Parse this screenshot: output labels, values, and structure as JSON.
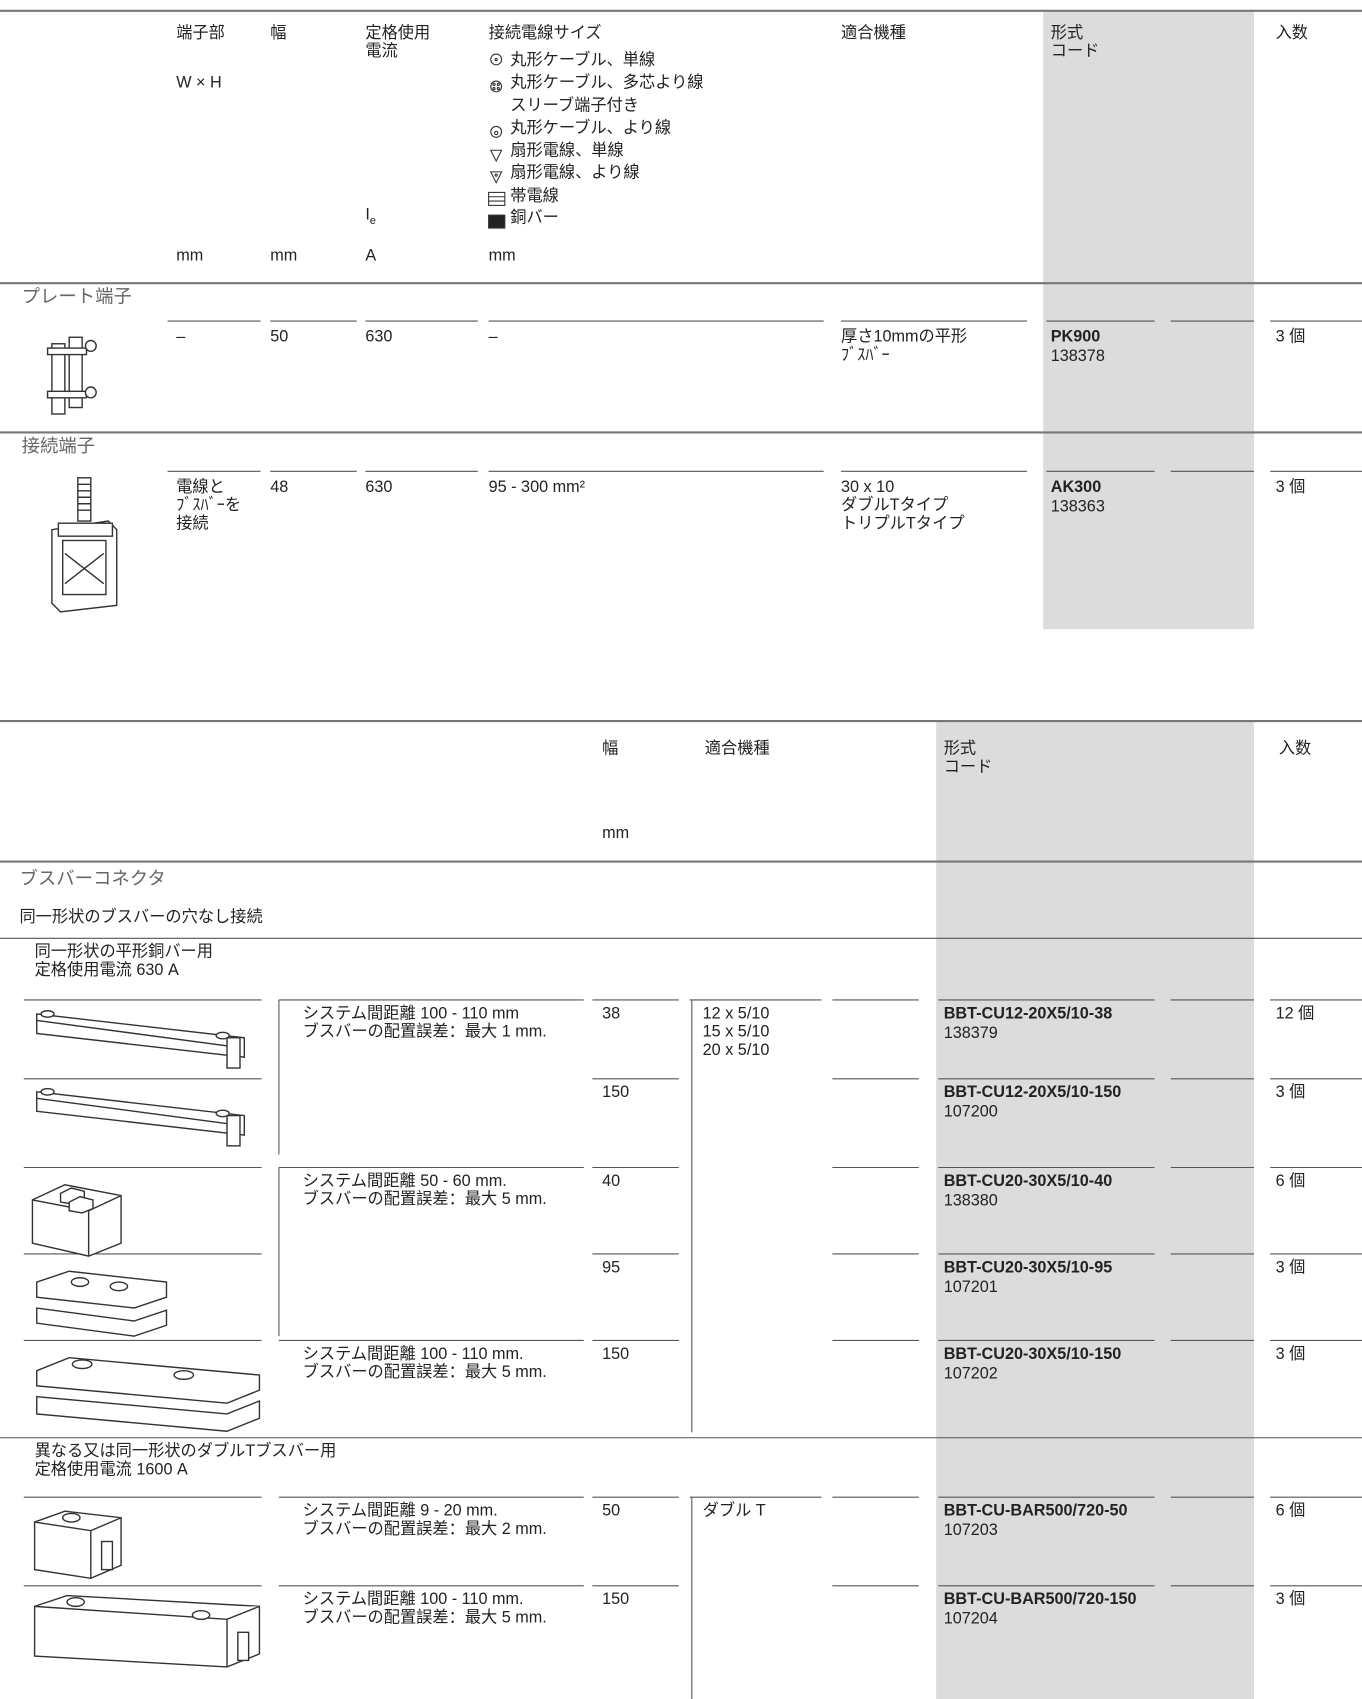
{
  "table1": {
    "headers": [
      {
        "label": "端子部",
        "sub": "W × H",
        "unit": "mm"
      },
      {
        "label": "幅",
        "unit": "mm"
      },
      {
        "label": "定格使用\n電流",
        "symbol": "I",
        "symbol_sub": "e",
        "unit": "A"
      },
      {
        "label": "接続電線サイズ",
        "legend": [
          "丸形ケーブル、単線",
          "丸形ケーブル、多芯より線\nスリーブ端子付き",
          "丸形ケーブル、より線",
          "扇形電線、単線",
          "扇形電線、より線",
          "帯電線",
          "銅バー"
        ],
        "unit": "mm"
      },
      {
        "label": "適合機種"
      },
      {
        "label": "形式\nコード"
      },
      {
        "label": "入数"
      }
    ],
    "sections": [
      {
        "title": "プレート端子",
        "row": {
          "terminal": "–",
          "width": "50",
          "current": "630",
          "wire_size": "–",
          "models": "厚さ10mmの平形\nﾌﾞｽﾊﾞｰ",
          "type": "PK900",
          "code": "138378",
          "quantity": "3 個"
        }
      },
      {
        "title": "接続端子",
        "row": {
          "terminal": "電線と\nﾌﾞｽﾊﾞｰを\n接続",
          "width": "48",
          "current": "630",
          "wire_size": "95 - 300 mm²",
          "models": "30 x 10\nダブルTタイプ\nトリプルTタイプ",
          "type": "AK300",
          "code": "138363",
          "quantity": "3 個"
        }
      }
    ]
  },
  "table2": {
    "headers": [
      {
        "label": "幅",
        "unit": "mm"
      },
      {
        "label": "適合機種"
      },
      {
        "label": "形式\nコード"
      },
      {
        "label": "入数"
      }
    ],
    "section": "ブスバーコネクタ",
    "subsection": "同一形状のブスバーの穴なし接続",
    "groups": [
      {
        "heading": "同一形状の平形銅バー用\n定格使用電流 630 A",
        "models": "12 x 5/10\n15 x 5/10\n20 x 5/10",
        "rows": [
          {
            "description": "システム間距離 100 - 110 mm\nブスバーの配置誤差：最大 1 mm.",
            "width": "38",
            "type": "BBT-CU12-20X5/10-38",
            "code": "138379",
            "quantity": "12 個"
          },
          {
            "width": "150",
            "type": "BBT-CU12-20X5/10-150",
            "code": "107200",
            "quantity": "3 個"
          },
          {
            "description": "システム間距離 50 - 60 mm.\nブスバーの配置誤差：最大 5 mm.",
            "width": "40",
            "type": "BBT-CU20-30X5/10-40",
            "code": "138380",
            "quantity": "6 個"
          },
          {
            "width": "95",
            "type": "BBT-CU20-30X5/10-95",
            "code": "107201",
            "quantity": "3 個"
          },
          {
            "description": "システム間距離 100 - 110 mm.\nブスバーの配置誤差：最大 5 mm.",
            "width": "150",
            "type": "BBT-CU20-30X5/10-150",
            "code": "107202",
            "quantity": "3 個"
          }
        ]
      },
      {
        "heading": "異なる又は同一形状のダブルTブスバー用\n定格使用電流 1600 A",
        "models": "ダブル T",
        "rows": [
          {
            "description": "システム間距離 9 - 20 mm.\nブスバーの配置誤差：最大 2 mm.",
            "width": "50",
            "type": "BBT-CU-BAR500/720-50",
            "code": "107203",
            "quantity": "6 個"
          },
          {
            "description": "システム間距離 100 - 110 mm.\nブスバーの配置誤差：最大 5 mm.",
            "width": "150",
            "type": "BBT-CU-BAR500/720-150",
            "code": "107204",
            "quantity": "3 個"
          }
        ]
      }
    ]
  }
}
